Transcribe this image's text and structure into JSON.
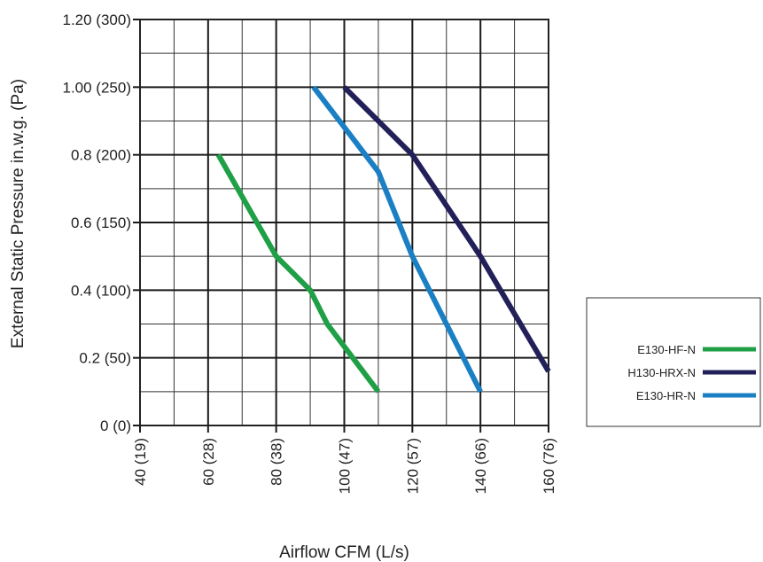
{
  "chart_data": {
    "type": "line",
    "xlabel": "Airflow CFM (L/s)",
    "ylabel": "External Static Pressure in.w.g. (Pa)",
    "xlim": [
      40,
      160
    ],
    "ylim": [
      0,
      1.2
    ],
    "x_ticks": [
      {
        "value": 40,
        "label": "40 (19)"
      },
      {
        "value": 60,
        "label": "60 (28)"
      },
      {
        "value": 80,
        "label": "80 (38)"
      },
      {
        "value": 100,
        "label": "100 (47)"
      },
      {
        "value": 120,
        "label": "120 (57)"
      },
      {
        "value": 140,
        "label": "140 (66)"
      },
      {
        "value": 160,
        "label": "160 (76)"
      }
    ],
    "y_ticks": [
      {
        "value": 0,
        "label": "0 (0)"
      },
      {
        "value": 0.2,
        "label": "0.2 (50)"
      },
      {
        "value": 0.4,
        "label": "0.4 (100)"
      },
      {
        "value": 0.6,
        "label": "0.6 (150)"
      },
      {
        "value": 0.8,
        "label": "0.8 (200)"
      },
      {
        "value": 1.0,
        "label": "1.00 (250)"
      },
      {
        "value": 1.2,
        "label": "1.20 (300)"
      }
    ],
    "grid": true,
    "grid_minor_x_step": 10,
    "grid_minor_y_step": 0.1,
    "legend_position": "right",
    "series": [
      {
        "name": "E130-HF-N",
        "color": "#1fa046",
        "x": [
          63,
          80,
          90,
          95,
          110
        ],
        "y": [
          0.8,
          0.5,
          0.4,
          0.3,
          0.1
        ]
      },
      {
        "name": "H130-HRX-N",
        "color": "#222058",
        "x": [
          100,
          120,
          140,
          160
        ],
        "y": [
          1.0,
          0.8,
          0.5,
          0.16
        ]
      },
      {
        "name": "E130-HR-N",
        "color": "#1b7fc4",
        "x": [
          91,
          110,
          120,
          140
        ],
        "y": [
          1.0,
          0.75,
          0.5,
          0.1
        ]
      }
    ]
  }
}
